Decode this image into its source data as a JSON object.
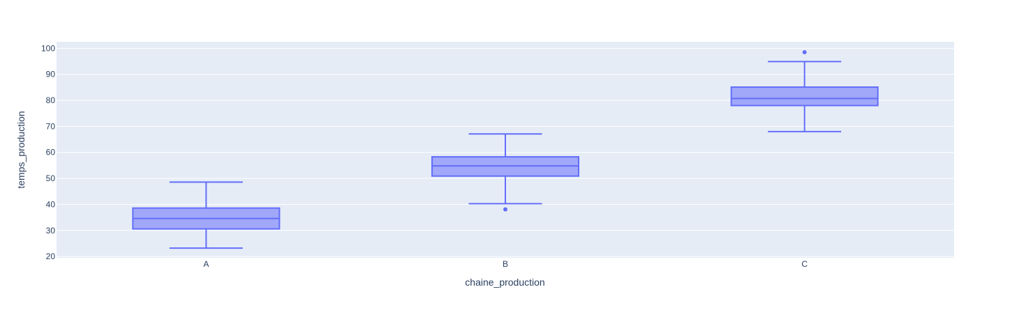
{
  "chart_data": {
    "type": "box",
    "xlabel": "chaine_production",
    "ylabel": "temps_production",
    "ylim": [
      19.5,
      102.5
    ],
    "yticks": [
      20,
      30,
      40,
      50,
      60,
      70,
      80,
      90,
      100
    ],
    "grid": true,
    "categories": [
      "A",
      "B",
      "C"
    ],
    "boxes": [
      {
        "category": "A",
        "lowerfence": 23.2,
        "q1": 30.6,
        "median": 34.6,
        "q3": 38.6,
        "upperfence": 48.6,
        "outliers": []
      },
      {
        "category": "B",
        "lowerfence": 40.3,
        "q1": 50.9,
        "median": 54.8,
        "q3": 58.3,
        "upperfence": 67.1,
        "outliers": [
          38.1
        ]
      },
      {
        "category": "C",
        "lowerfence": 68.0,
        "q1": 78.0,
        "median": 80.7,
        "q3": 85.1,
        "upperfence": 94.9,
        "outliers": [
          98.5
        ]
      }
    ],
    "colors": {
      "plot_bg": "#e5ecf6",
      "grid": "#ffffff",
      "box_line": "#636efa",
      "box_fill": "#a1a7f9",
      "text": "#2a3f5f"
    }
  }
}
